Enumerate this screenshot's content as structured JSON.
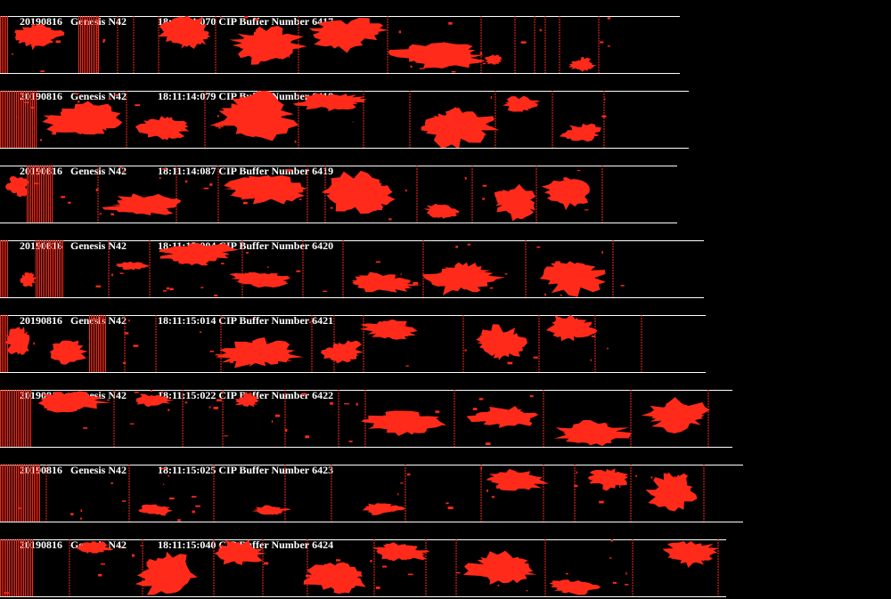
{
  "frames": [
    {
      "date": "20190816",
      "aircraft": "Genesis N42",
      "time": "18:11:14:070",
      "label": "CIP Buffer Number",
      "buffer": "6417"
    },
    {
      "date": "20190816",
      "aircraft": "Genesis N42",
      "time": "18:11:14:079",
      "label": "CIP Buffer Number",
      "buffer": "6418"
    },
    {
      "date": "20190816",
      "aircraft": "Genesis N42",
      "time": "18:11:14:087",
      "label": "CIP Buffer Number",
      "buffer": "6419"
    },
    {
      "date": "20190816",
      "aircraft": "Genesis N42",
      "time": "18:11:15:004",
      "label": "CIP Buffer Number",
      "buffer": "6420"
    },
    {
      "date": "20190816",
      "aircraft": "Genesis N42",
      "time": "18:11:15:014",
      "label": "CIP Buffer Number",
      "buffer": "6421"
    },
    {
      "date": "20190816",
      "aircraft": "Genesis N42",
      "time": "18:11:15:022",
      "label": "CIP Buffer Number",
      "buffer": "6422"
    },
    {
      "date": "20190816",
      "aircraft": "Genesis N42",
      "time": "18:11:15:025",
      "label": "CIP Buffer Number",
      "buffer": "6423"
    },
    {
      "date": "20190816",
      "aircraft": "Genesis N42",
      "time": "18:11:15:040",
      "label": "CIP Buffer Number",
      "buffer": "6424"
    }
  ],
  "colors": {
    "background": "#000000",
    "particle": "#ff2a1a",
    "text": "#ffffff",
    "rule": "#ffffff"
  }
}
